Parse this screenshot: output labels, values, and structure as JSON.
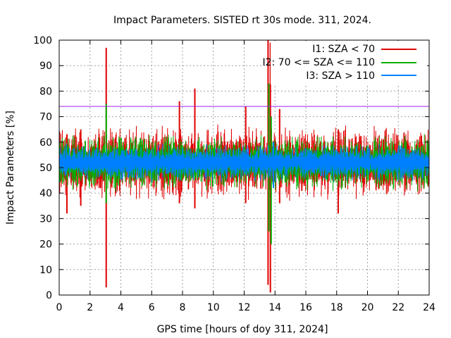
{
  "chart_data": {
    "type": "line",
    "title": "Impact Parameters. SISTED rt 30s mode. 311, 2024.",
    "xlabel": "GPS time [hours of doy 311, 2024]",
    "ylabel": "Impact Parameters [%]",
    "xlim": [
      0,
      24
    ],
    "ylim": [
      0,
      100
    ],
    "x_ticks": [
      0,
      2,
      4,
      6,
      8,
      10,
      12,
      14,
      16,
      18,
      20,
      22,
      24
    ],
    "y_ticks": [
      0,
      10,
      20,
      30,
      40,
      50,
      60,
      70,
      80,
      90,
      100
    ],
    "grid": true,
    "legend_position": "top-right",
    "threshold": {
      "value": 74,
      "color": "#a020f0"
    },
    "series": [
      {
        "name": "I1: SZA < 70",
        "color": "#e00000",
        "baseline": 52,
        "noise_amplitude": 8,
        "spikes": [
          [
            3.05,
            97,
            3
          ],
          [
            7.8,
            76,
            36
          ],
          [
            8.8,
            81,
            34
          ],
          [
            12.1,
            74,
            36
          ],
          [
            13.55,
            100,
            4
          ],
          [
            13.7,
            99,
            1
          ],
          [
            14.3,
            73,
            36
          ],
          [
            18.1,
            65,
            32
          ],
          [
            1.4,
            65,
            35
          ],
          [
            0.5,
            63,
            32
          ]
        ]
      },
      {
        "name": "I2: 70 <= SZA <= 110",
        "color": "#00b000",
        "baseline": 52,
        "noise_amplitude": 6,
        "spikes": [
          [
            3.05,
            75,
            36
          ],
          [
            13.6,
            83,
            25
          ],
          [
            13.75,
            70,
            20
          ]
        ]
      },
      {
        "name": "I3: SZA > 110",
        "color": "#0080ff",
        "baseline": 52,
        "noise_amplitude": 4,
        "spikes": [
          [
            13.9,
            60,
            42
          ]
        ]
      }
    ]
  }
}
